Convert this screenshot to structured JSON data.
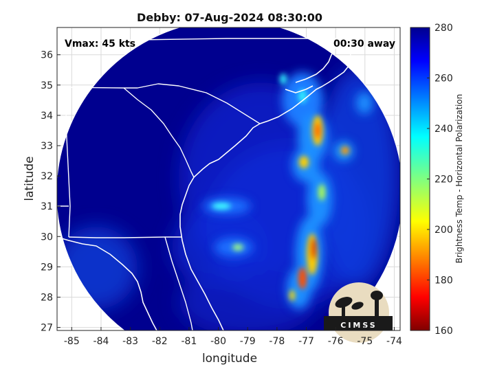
{
  "title": "Debby: 07-Aug-2024 08:30:00",
  "overlay": {
    "vmax": "Vmax: 45 kts",
    "time_away": "00:30 away"
  },
  "axes": {
    "xlabel": "longitude",
    "ylabel": "latitude",
    "x_ticks": [
      "-85",
      "-84",
      "-83",
      "-82",
      "-81",
      "-80",
      "-79",
      "-78",
      "-77",
      "-76",
      "-75",
      "-74"
    ],
    "y_ticks": [
      "27",
      "28",
      "29",
      "30",
      "31",
      "32",
      "33",
      "34",
      "35",
      "36"
    ],
    "xlim": [
      -85.5,
      -73.8
    ],
    "ylim": [
      26.9,
      36.9
    ]
  },
  "colorbar": {
    "label": "Brightness Temp - Horizontal Polarization",
    "ticks": [
      "160",
      "180",
      "200",
      "220",
      "240",
      "260",
      "280"
    ],
    "range": [
      160,
      280
    ],
    "colormap": "jet"
  },
  "logo": {
    "text": "CIMSS"
  },
  "colors": {
    "background_field": "#00008f",
    "coastline": "#ffffff",
    "ring": "#ffffff"
  }
}
